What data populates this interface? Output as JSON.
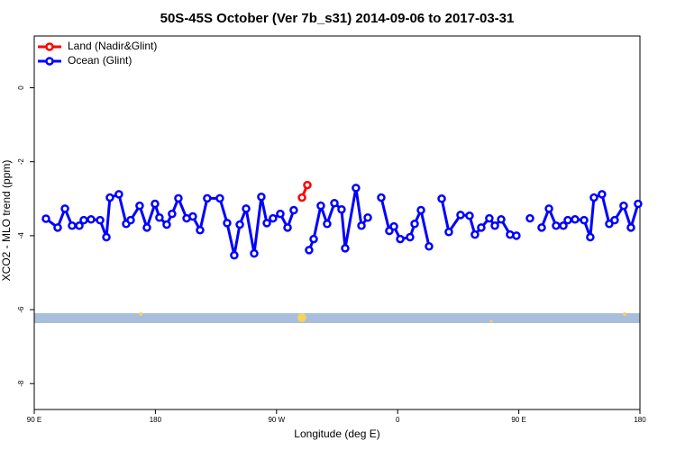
{
  "chart_data": {
    "type": "line",
    "title": "50S-45S October (Ver 7b_s31)   2014-09-06 to 2017-03-31",
    "x_label": "Longitude (deg E)",
    "y_label": "XCO2 - MLO trend (ppm)",
    "xlim": [
      90,
      540
    ],
    "ylim": [
      -8.7,
      1.4
    ],
    "xticks": [
      {
        "value": 90,
        "label": "90 E"
      },
      180,
      {
        "value": 270,
        "label": "90 W"
      },
      {
        "value": 360,
        "label": "0"
      },
      {
        "value": 450,
        "label": "90 E"
      },
      {
        "value": 540,
        "label": "180"
      }
    ],
    "yticks": [
      -8,
      -6,
      -4,
      -2,
      0
    ],
    "legend": "top-left",
    "series": [
      {
        "name": "Land (Nadir&Glint)",
        "color": "#ff0000",
        "x": [
          288.9,
          292.9
        ],
        "values": [
          -2.97,
          -2.63
        ]
      },
      {
        "name": "Ocean (Glint)",
        "color": "#0000ff",
        "x": [
          98.7,
          107.4,
          112.8,
          118.1,
          123.5,
          126.8,
          132.2,
          138.9,
          143.6,
          146.2,
          152.9,
          158.3,
          161.6,
          168.3,
          173.7,
          179.7,
          183.0,
          188.4,
          192.4,
          197.1,
          203.2,
          207.8,
          213.2,
          218.5,
          227.9,
          233.3,
          238.6,
          242.7,
          247.4,
          253.4,
          258.7,
          262.8,
          267.4,
          272.8,
          278.2,
          282.8,
          288.5,
          294.2,
          297.6,
          302.9,
          307.6,
          313.0,
          318.3,
          321.0,
          329.0,
          333.1,
          337.8,
          342.8,
          347.8,
          353.8,
          357.2,
          361.9,
          369.2,
          372.6,
          377.3,
          383.3,
          388.0,
          392.7,
          398.0,
          406.7,
          413.4,
          417.4,
          422.1,
          428.1,
          432.2,
          436.9,
          443.5,
          448.2,
          453.2,
          458.3,
          462.6,
          467.0,
          472.4,
          477.7,
          483.1,
          486.4,
          491.8,
          498.5,
          503.1,
          505.8,
          511.8,
          517.2,
          521.2,
          527.9,
          533.3,
          538.6
        ],
        "values": [
          -3.54,
          -3.78,
          -3.27,
          -3.73,
          -3.73,
          -3.58,
          -3.56,
          -3.58,
          -4.04,
          -2.97,
          -2.88,
          -3.68,
          -3.58,
          -3.19,
          -3.78,
          -3.14,
          -3.51,
          -3.7,
          -3.41,
          -2.99,
          -3.53,
          -3.48,
          -3.85,
          -2.99,
          -2.99,
          -3.66,
          -4.53,
          -3.7,
          -3.27,
          -4.48,
          -2.95,
          -3.66,
          -3.53,
          -3.41,
          -3.78,
          -3.31,
          null,
          -4.39,
          -4.09,
          -3.19,
          -3.68,
          -3.12,
          -3.29,
          -4.34,
          -2.71,
          -3.73,
          -3.51,
          null,
          -2.97,
          -3.87,
          -3.75,
          -4.09,
          -4.04,
          -3.68,
          -3.31,
          -4.29,
          null,
          -3.0,
          -3.9,
          -3.44,
          -3.46,
          -3.97,
          -3.78,
          -3.53,
          -3.73,
          -3.56,
          -3.97,
          -4.0,
          null,
          -3.53,
          null,
          -3.78,
          -3.27,
          -3.73,
          -3.73,
          -3.58,
          -3.56,
          -3.58,
          -4.04,
          -2.97,
          -2.88,
          -3.68,
          -3.58,
          -3.19,
          -3.78,
          -3.14
        ]
      }
    ]
  }
}
